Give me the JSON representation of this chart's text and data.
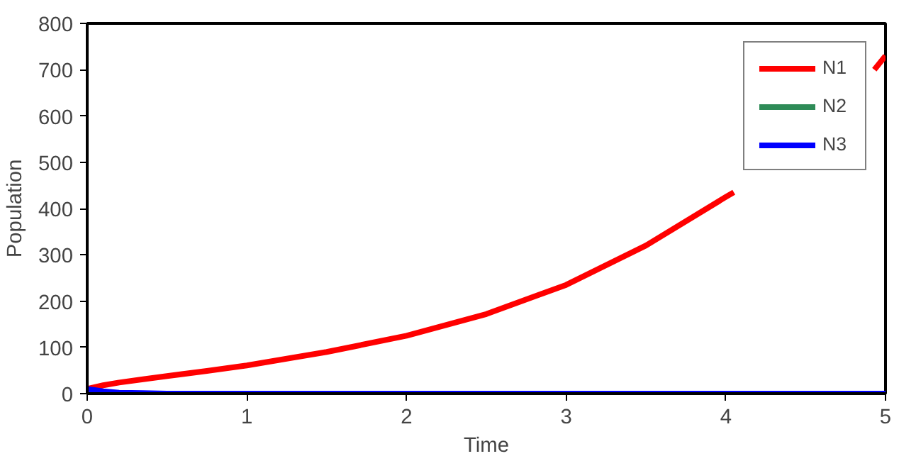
{
  "chart_data": {
    "type": "line",
    "xlabel": "Time",
    "ylabel": "Population",
    "x": [
      0,
      0.1,
      0.2,
      0.35,
      0.5,
      0.75,
      1,
      1.5,
      2,
      2.5,
      3,
      3.5,
      4,
      4.05,
      4.5,
      4.93,
      5
    ],
    "xlim": [
      0,
      5
    ],
    "xticks": [
      0,
      1,
      2,
      3,
      4,
      5
    ],
    "ylim": [
      0,
      800
    ],
    "yticks": [
      0,
      100,
      200,
      300,
      400,
      500,
      600,
      700,
      800
    ],
    "grid": false,
    "legend": "top right",
    "marker": "none",
    "line_style": "solid",
    "series": [
      {
        "name": "N1",
        "color": "#ff0000",
        "values": [
          10,
          18,
          24,
          31,
          38,
          49,
          61,
          90,
          125,
          172,
          235,
          320,
          425,
          435,
          null,
          700,
          730
        ]
      },
      {
        "name": "N2",
        "color": "#2e8b57",
        "values": [
          null,
          null,
          null,
          null,
          null,
          null,
          null,
          null,
          null,
          null,
          null,
          null,
          null,
          null,
          null,
          null,
          null
        ]
      },
      {
        "name": "N3",
        "color": "#0000ff",
        "values": [
          10,
          5,
          2,
          1,
          0,
          0,
          0,
          0,
          0,
          0,
          0,
          0,
          0,
          0,
          0,
          0,
          0
        ]
      }
    ]
  }
}
